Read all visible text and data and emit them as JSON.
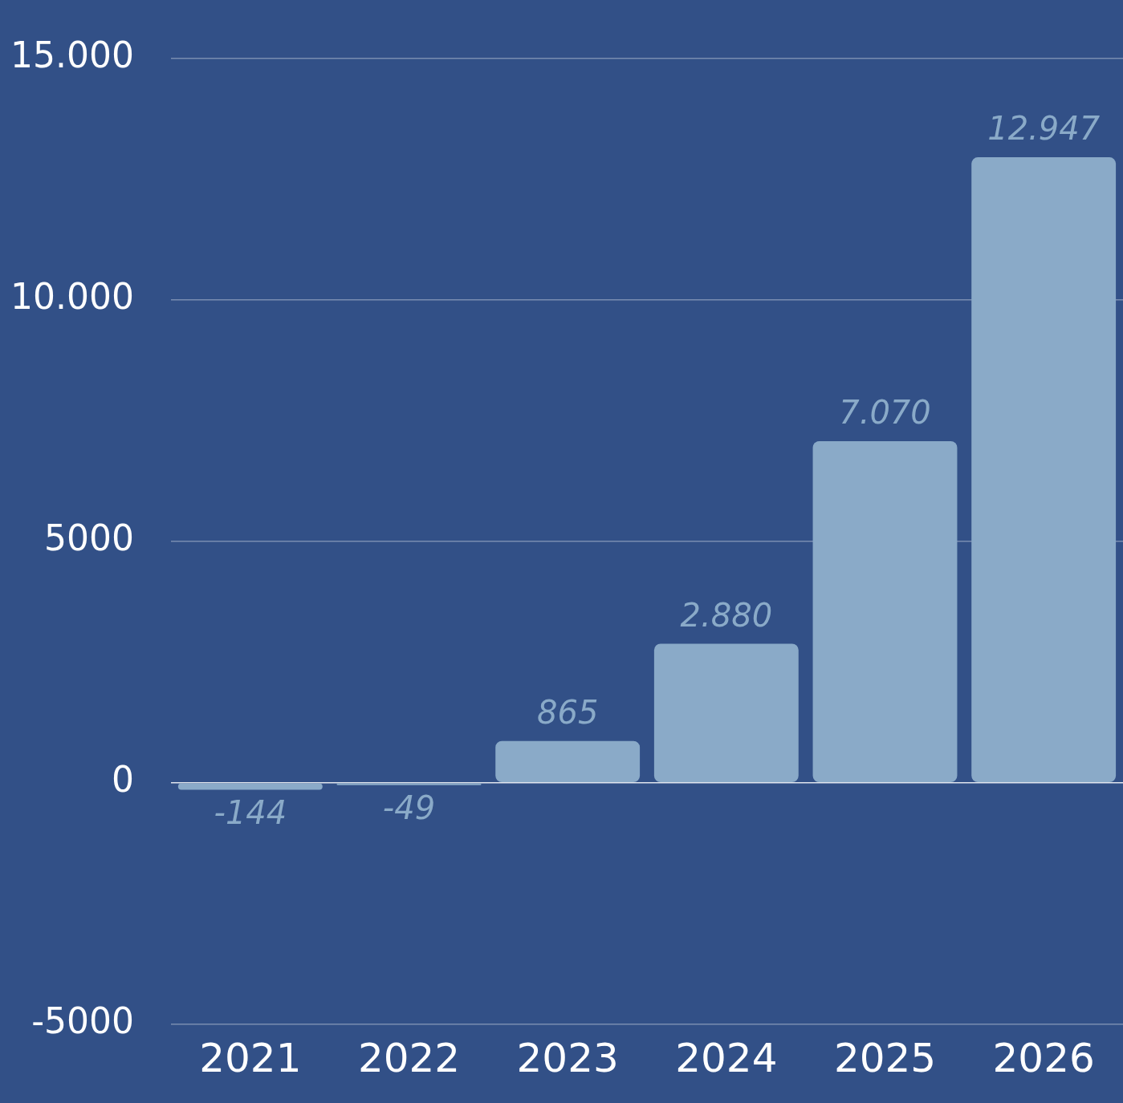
{
  "chart_data": {
    "type": "bar",
    "categories": [
      "2021",
      "2022",
      "2023",
      "2024",
      "2025",
      "2026"
    ],
    "values": [
      -144,
      -49,
      865,
      2880,
      7070,
      12947
    ],
    "value_labels": [
      "-144",
      "-49",
      "865",
      "2.880",
      "7.070",
      "12.947"
    ],
    "color": "#8aaac8",
    "ylim": [
      -5000,
      15000
    ],
    "yticks": [
      -5000,
      0,
      5000,
      {
        "value": 10000,
        "label": "10.000"
      },
      {
        "value": 15000,
        "label": "15.000"
      }
    ],
    "grid": "y"
  }
}
